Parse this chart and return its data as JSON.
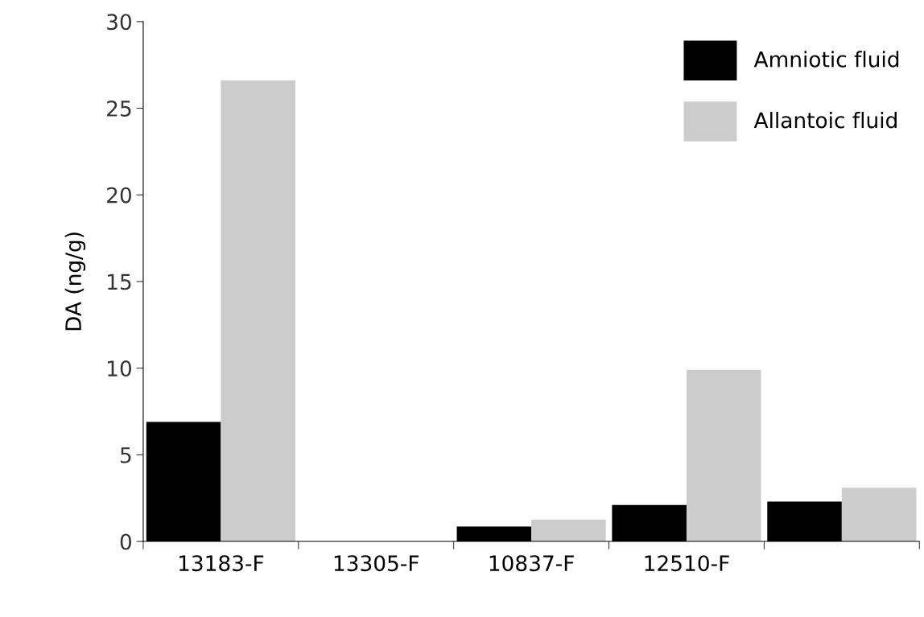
{
  "chart_data": {
    "type": "bar",
    "ylabel": "DA (ng/g)",
    "categories": [
      "13183-F",
      "13305-F",
      "10837-F",
      "12510-F",
      null
    ],
    "series": [
      {
        "name": "Amniotic fluid",
        "color": "#000000",
        "values": [
          6.9,
          null,
          0.86,
          2.1,
          2.3
        ]
      },
      {
        "name": "Allantoic fluid",
        "color": "#cccccc",
        "values": [
          26.6,
          null,
          1.26,
          9.9,
          3.1
        ]
      }
    ],
    "ylim": [
      0,
      30
    ],
    "yticks": [
      0,
      5,
      10,
      15,
      20,
      25,
      30
    ],
    "grid": false,
    "legend": "top right"
  }
}
